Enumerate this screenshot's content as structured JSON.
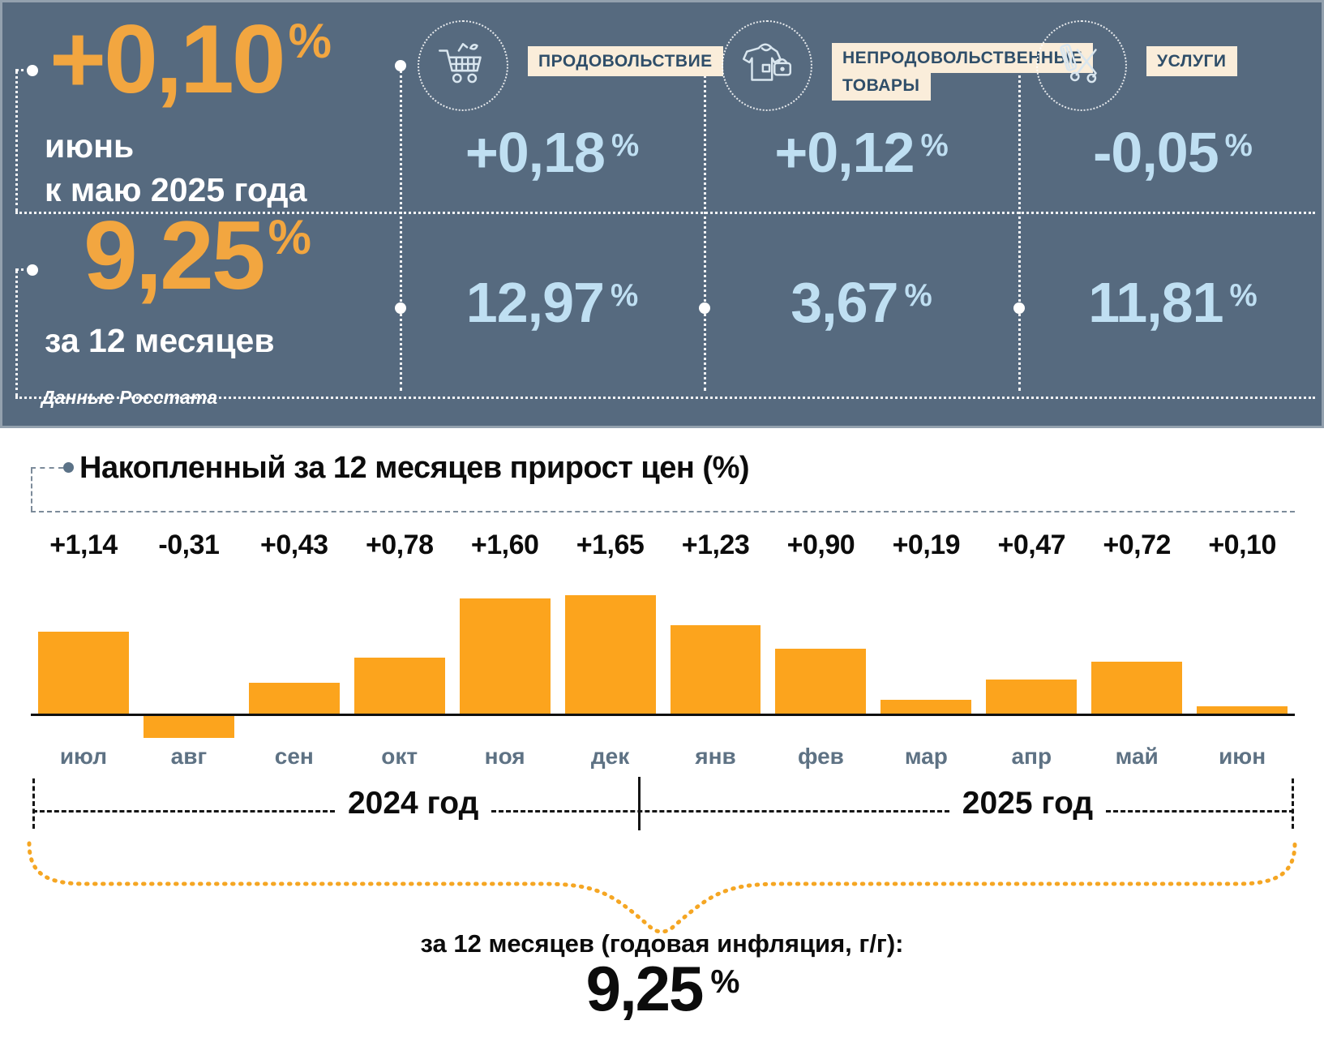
{
  "banner": {
    "monthly": {
      "value": "+0,10",
      "percent_sign": "%",
      "caption_line1": "июнь",
      "caption_line2": "к маю 2025 года"
    },
    "annual": {
      "value": "9,25",
      "percent_sign": "%",
      "caption": "за 12 месяцев"
    },
    "source_note": "Данные Росстата",
    "categories": [
      {
        "label": "ПРОДОВОЛЬСТВИЕ",
        "icon": "shopping-cart-icon",
        "monthly": "+0,18",
        "annual": "12,97",
        "percent_sign": "%"
      },
      {
        "label": "НЕПРОДОВОЛЬСТВЕННЫЕ ТОВАРЫ",
        "icon": "clothes-and-bag-icon",
        "monthly": "+0,12",
        "annual": "3,67",
        "percent_sign": "%"
      },
      {
        "label": "УСЛУГИ",
        "icon": "scissors-and-comb-icon",
        "monthly": "-0,05",
        "annual": "11,81",
        "percent_sign": "%"
      }
    ]
  },
  "chart_data": {
    "type": "bar",
    "title": "Накопленный за 12 месяцев прирост цен (%)",
    "categories": [
      "июл",
      "авг",
      "сен",
      "окт",
      "ноя",
      "дек",
      "янв",
      "фев",
      "мар",
      "апр",
      "май",
      "июн"
    ],
    "values": [
      1.14,
      -0.31,
      0.43,
      0.78,
      1.6,
      1.65,
      1.23,
      0.9,
      0.19,
      0.47,
      0.72,
      0.1
    ],
    "value_labels": [
      "+1,14",
      "-0,31",
      "+0,43",
      "+0,78",
      "+1,60",
      "+1,65",
      "+1,23",
      "+0,90",
      "+0,19",
      "+0,47",
      "+0,72",
      "+0,10"
    ],
    "bar_color": "#FCA41D",
    "ylim": [
      -0.4,
      1.75
    ],
    "grid": false,
    "legend": "none",
    "year_groups": [
      {
        "label": "2024 год"
      },
      {
        "label": "2025 год"
      }
    ]
  },
  "summary": {
    "caption": "за 12 месяцев (годовая инфляция, г/г):",
    "value": "9,25",
    "percent_sign": "%"
  },
  "colors": {
    "banner_bg": "#566A7F",
    "accent_orange": "#F2A640",
    "bar_orange": "#FCA41D",
    "value_blue": "#BFDFF2",
    "chip_bg": "#FAEDDA",
    "chip_text": "#2F4E69",
    "month_label": "#5E7284"
  }
}
